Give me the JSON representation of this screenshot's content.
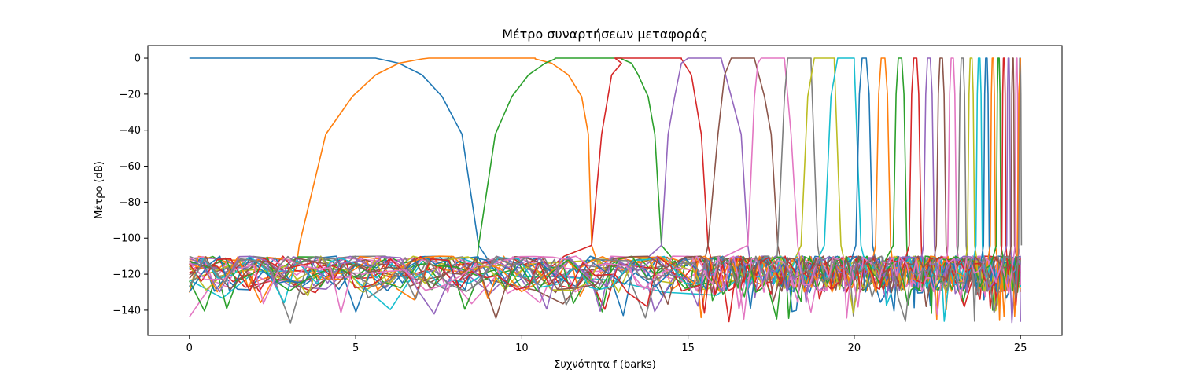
{
  "chart_data": {
    "type": "line",
    "title": "Μέτρο συναρτήσεων μεταφοράς",
    "xlabel": "Συχνότητα f (barks)",
    "ylabel": "Μέτρο (dB)",
    "xlim": [
      -1.25,
      26.25
    ],
    "ylim": [
      -154,
      7
    ],
    "xticks": [
      0,
      5,
      10,
      15,
      20,
      25
    ],
    "yticks": [
      0,
      -20,
      -40,
      -60,
      -80,
      -100,
      -120,
      -140
    ],
    "xtick_labels": [
      "0",
      "5",
      "10",
      "15",
      "20",
      "25"
    ],
    "ytick_labels": [
      "0",
      "−20",
      "−40",
      "−60",
      "−80",
      "−100",
      "−120",
      "−140"
    ],
    "grid": false,
    "legend": "none",
    "noise_floor_db": [
      -107,
      -147
    ],
    "palette": [
      "#1f77b4",
      "#ff7f0e",
      "#2ca02c",
      "#d62728",
      "#9467bd",
      "#8c564b",
      "#e377c2",
      "#7f7f7f",
      "#bcbd22",
      "#17becf"
    ],
    "series": [
      {
        "passband": [
          0,
          5.6
        ],
        "rolloff": [
          [
            5.6,
            0
          ],
          [
            6.3,
            -2.8
          ],
          [
            7.0,
            -9.3
          ],
          [
            7.6,
            -21.3
          ],
          [
            8.2,
            -42.3
          ],
          [
            8.7,
            -104
          ]
        ]
      },
      {
        "passband": [
          7.2,
          10.4
        ],
        "rolloff_left": [
          [
            3.3,
            -104
          ],
          [
            4.1,
            -42.3
          ],
          [
            4.9,
            -21.3
          ],
          [
            5.6,
            -9.3
          ],
          [
            6.3,
            -2.8
          ],
          [
            7.0,
            -0.4
          ]
        ],
        "rolloff_right": [
          [
            10.4,
            -0.4
          ],
          [
            10.9,
            -2.8
          ],
          [
            11.4,
            -9.3
          ],
          [
            11.8,
            -21.3
          ],
          [
            12.0,
            -42.3
          ],
          [
            12.1,
            -104
          ]
        ]
      },
      {
        "passband": [
          11.0,
          13.0
        ],
        "rolloff_left": [
          [
            8.7,
            -104
          ],
          [
            9.2,
            -42.3
          ],
          [
            9.7,
            -21.3
          ],
          [
            10.2,
            -9.3
          ],
          [
            10.7,
            -2.8
          ],
          [
            11.0,
            -0.4
          ]
        ],
        "rolloff_right": [
          [
            13.0,
            -0.4
          ],
          [
            13.3,
            -2.8
          ],
          [
            13.5,
            -9.3
          ],
          [
            13.8,
            -21.3
          ],
          [
            14.0,
            -42.3
          ],
          [
            14.2,
            -104
          ]
        ]
      },
      {
        "passband": [
          12.8,
          14.8
        ],
        "rolloff_left": [
          [
            12.1,
            -104
          ],
          [
            12.4,
            -42.3
          ],
          [
            12.7,
            -9.3
          ],
          [
            13.0,
            -2.8
          ]
        ],
        "rolloff_right": [
          [
            14.8,
            -0.4
          ],
          [
            15.1,
            -9.3
          ],
          [
            15.4,
            -42.3
          ],
          [
            15.6,
            -104
          ]
        ]
      },
      {
        "passband": [
          15.0,
          16.0
        ],
        "rolloff_left": [
          [
            14.2,
            -104
          ],
          [
            14.4,
            -42.3
          ],
          [
            14.6,
            -21.3
          ],
          [
            14.8,
            -2.8
          ]
        ],
        "rolloff_right": [
          [
            16.0,
            -0.4
          ],
          [
            16.3,
            -21.3
          ],
          [
            16.6,
            -42.3
          ],
          [
            16.8,
            -104
          ]
        ]
      },
      {
        "passband": [
          16.3,
          17.0
        ],
        "rolloff_left": [
          [
            15.6,
            -104
          ],
          [
            15.9,
            -42.3
          ],
          [
            16.1,
            -9.3
          ]
        ],
        "rolloff_right": [
          [
            17.0,
            -0.4
          ],
          [
            17.3,
            -21.3
          ],
          [
            17.5,
            -42.3
          ],
          [
            17.7,
            -104
          ]
        ]
      },
      {
        "passband": [
          17.2,
          17.9
        ],
        "rolloff_left": [
          [
            16.8,
            -104
          ],
          [
            17.0,
            -21.3
          ],
          [
            17.1,
            -2.8
          ]
        ],
        "rolloff_right": [
          [
            17.9,
            -0.4
          ],
          [
            18.1,
            -42.3
          ],
          [
            18.3,
            -104
          ]
        ]
      },
      {
        "passband": [
          18.0,
          18.7
        ],
        "rolloff_left": [
          [
            17.7,
            -104
          ],
          [
            17.9,
            -21.3
          ]
        ],
        "rolloff_right": [
          [
            18.7,
            -2.8
          ],
          [
            18.9,
            -104
          ]
        ]
      },
      {
        "passband": [
          18.8,
          19.4
        ],
        "rolloff_left": [
          [
            18.4,
            -104
          ],
          [
            18.6,
            -21.3
          ]
        ],
        "rolloff_right": [
          [
            19.4,
            -2.8
          ],
          [
            19.6,
            -104
          ]
        ]
      },
      {
        "passband": [
          19.5,
          20.0
        ],
        "rolloff_left": [
          [
            19.1,
            -104
          ],
          [
            19.3,
            -21.3
          ]
        ],
        "rolloff_right": [
          [
            20.0,
            -2.8
          ],
          [
            20.2,
            -104
          ]
        ]
      }
    ]
  }
}
